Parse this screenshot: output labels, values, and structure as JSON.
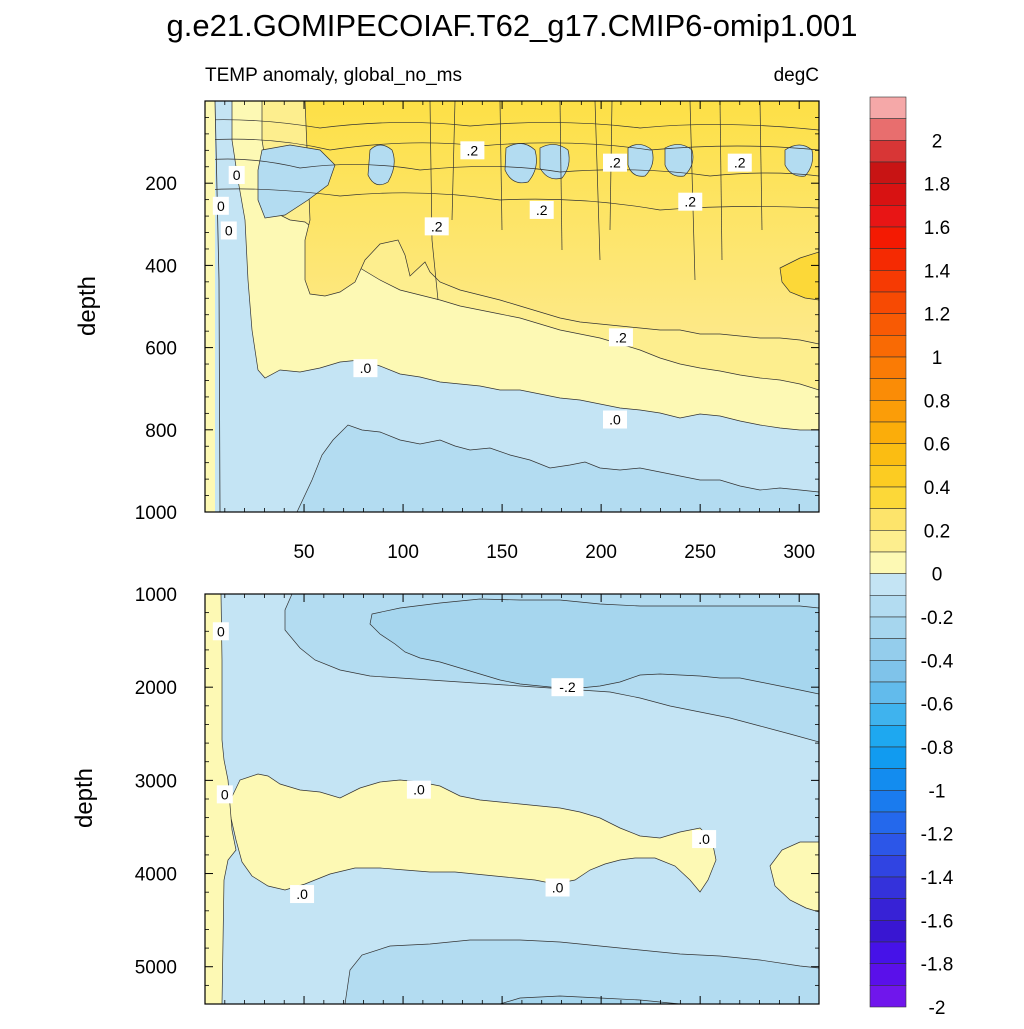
{
  "chart_data": {
    "type": "heatmap",
    "title": "g.e21.GOMIPECOIAF.T62_g17.CMIP6-omip1.001",
    "subtitle_left": "TEMP anomaly, global_no_ms",
    "subtitle_right": "degC",
    "x_range": [
      0,
      310
    ],
    "x_ticks": [
      50,
      100,
      150,
      200,
      250,
      300
    ],
    "panels": [
      {
        "id": "upper",
        "ylabel": "depth",
        "y_range": [
          0,
          1000
        ],
        "y_ticks": [
          200,
          400,
          600,
          800,
          1000
        ],
        "contour_labels": [
          {
            "text": "0",
            "x": 16,
            "y": 180
          },
          {
            "text": "0",
            "x": 8,
            "y": 255
          },
          {
            "text": "0",
            "x": 12,
            "y": 315
          },
          {
            "text": ".2",
            "x": 135,
            "y": 120
          },
          {
            "text": ".2",
            "x": 207,
            "y": 150
          },
          {
            "text": ".2",
            "x": 270,
            "y": 150
          },
          {
            "text": ".2",
            "x": 170,
            "y": 265
          },
          {
            "text": ".2",
            "x": 117,
            "y": 305
          },
          {
            "text": ".2",
            "x": 245,
            "y": 245
          },
          {
            "text": ".2",
            "x": 210,
            "y": 575
          },
          {
            "text": ".0",
            "x": 81,
            "y": 650
          },
          {
            "text": ".0",
            "x": 207,
            "y": 775
          }
        ]
      },
      {
        "id": "lower",
        "ylabel": "depth",
        "y_range": [
          1000,
          5400
        ],
        "y_ticks": [
          1000,
          2000,
          3000,
          4000,
          5000
        ],
        "contour_labels": [
          {
            "text": "0",
            "x": 8,
            "y": 1400
          },
          {
            "text": "-.2",
            "x": 183,
            "y": 2000
          },
          {
            "text": "0",
            "x": 10,
            "y": 3150
          },
          {
            "text": ".0",
            "x": 108,
            "y": 3100
          },
          {
            "text": ".0",
            "x": 252,
            "y": 3630
          },
          {
            "text": ".0",
            "x": 178,
            "y": 4150
          },
          {
            "text": ".0",
            "x": 49,
            "y": 4220
          }
        ]
      }
    ],
    "colorbar": {
      "unit": "degC",
      "min": -2,
      "max": 2.2,
      "step": 0.1,
      "labels": [
        "2",
        "1.8",
        "1.6",
        "1.4",
        "1.2",
        "1",
        "0.8",
        "0.6",
        "0.4",
        "0.2",
        "0",
        "-0.2",
        "-0.4",
        "-0.6",
        "-0.8",
        "-1",
        "-1.2",
        "-1.4",
        "-1.6",
        "-1.8",
        "-2"
      ]
    }
  }
}
